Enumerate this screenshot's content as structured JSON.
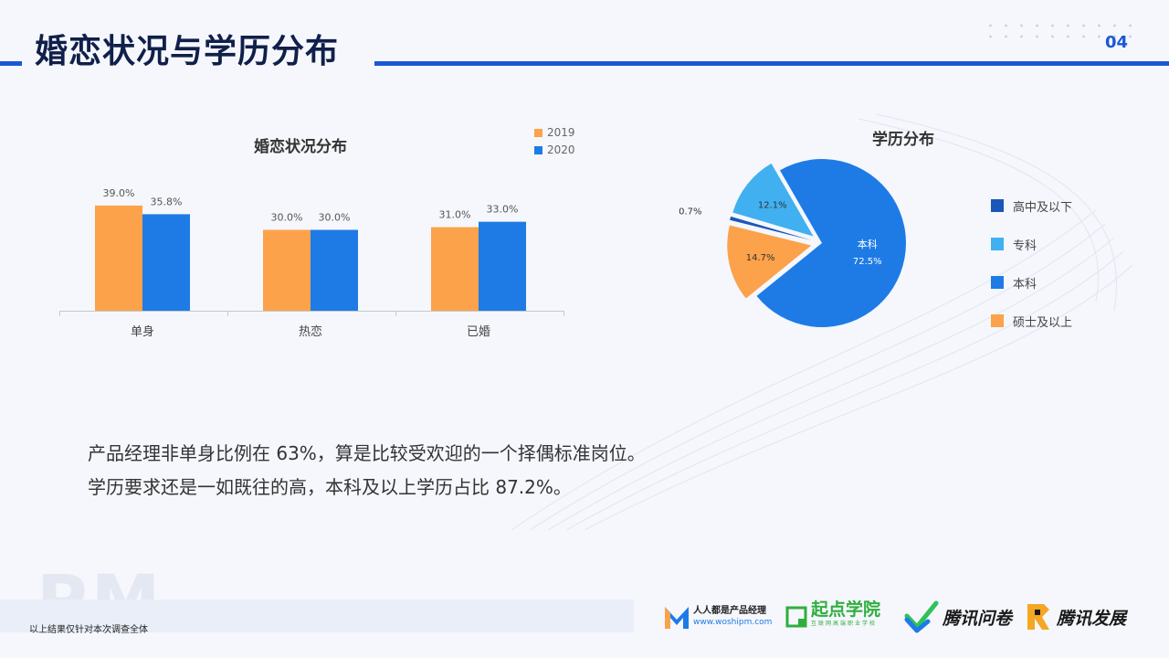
{
  "header": {
    "title": "婚恋状况与学历分布",
    "page_number": "04"
  },
  "marriage_chart": {
    "title": "婚恋状况分布",
    "legend": [
      {
        "name": "2019",
        "color": "#fba24b"
      },
      {
        "name": "2020",
        "color": "#1e7be6"
      }
    ]
  },
  "education_chart": {
    "title": "学历分布",
    "legend": [
      {
        "name": "高中及以下",
        "color": "#1a57b8"
      },
      {
        "name": "专科",
        "color": "#40b0f0"
      },
      {
        "name": "本科",
        "color": "#1e7be6"
      },
      {
        "name": "硕士及以上",
        "color": "#fba24b"
      }
    ]
  },
  "chart_data": [
    {
      "type": "bar",
      "title": "婚恋状况分布",
      "categories": [
        "单身",
        "热恋",
        "已婚"
      ],
      "series": [
        {
          "name": "2019",
          "values": [
            39.0,
            30.0,
            31.0
          ],
          "labels": [
            "39.0%",
            "30.0%",
            "31.0%"
          ]
        },
        {
          "name": "2020",
          "values": [
            35.8,
            30.0,
            33.0
          ],
          "labels": [
            "35.8%",
            "30.0%",
            "33.0%"
          ]
        }
      ],
      "legend_position": "top-right",
      "grid": false
    },
    {
      "type": "pie",
      "title": "学历分布",
      "slices": [
        {
          "name": "本科",
          "value": 72.5,
          "label": "72.5%"
        },
        {
          "name": "硕士及以上",
          "value": 14.7,
          "label": "14.7%"
        },
        {
          "name": "高中及以下",
          "value": 0.7,
          "label": "0.7%"
        },
        {
          "name": "专科",
          "value": 12.1,
          "label": "12.1%"
        }
      ],
      "legend_position": "right"
    }
  ],
  "summary": {
    "line1": "产品经理非单身比例在 63%，算是比较受欢迎的一个择偶标准岗位。",
    "line2": "学历要求还是一如既往的高，本科及以上学历占比 87.2%。"
  },
  "footer": {
    "watermark": "PM",
    "note": "以上结果仅针对本次调查全体",
    "logos": {
      "woshipm_name": "人人都是产品经理",
      "woshipm_url": "www.woshipm.com",
      "qidian": "起点学院",
      "qidian_sub": "互联网高端职业学校",
      "wenjuan": "腾讯问卷",
      "fazhan": "腾讯发展"
    }
  }
}
